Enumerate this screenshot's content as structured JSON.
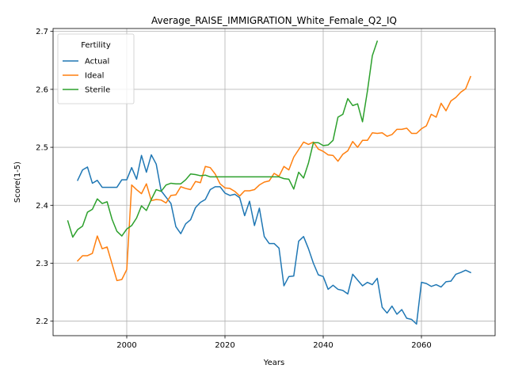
{
  "chart_data": {
    "type": "line",
    "title": "Average_RAISE_IMMIGRATION_White_Female_Q2_IQ",
    "xlabel": "Years",
    "ylabel": "Score(1-5)",
    "xlim": [
      1985,
      2075
    ],
    "ylim": [
      2.175,
      2.705
    ],
    "xticks": [
      2000,
      2020,
      2040,
      2060
    ],
    "yticks": [
      2.2,
      2.3,
      2.4,
      2.5,
      2.6,
      2.7
    ],
    "grid": true,
    "legend": {
      "title": "Fertility",
      "placement": "top-left"
    },
    "series": [
      {
        "name": "Actual",
        "color": "#1f77b4",
        "x": [
          1990,
          1991,
          1992,
          1993,
          1994,
          1995,
          1996,
          1997,
          1998,
          1999,
          2000,
          2001,
          2002,
          2003,
          2004,
          2005,
          2006,
          2007,
          2008,
          2009,
          2010,
          2011,
          2012,
          2013,
          2014,
          2015,
          2016,
          2017,
          2018,
          2019,
          2020,
          2021,
          2022,
          2023,
          2024,
          2025,
          2026,
          2027,
          2028,
          2029,
          2030,
          2031,
          2032,
          2033,
          2034,
          2035,
          2036,
          2037,
          2038,
          2039,
          2040,
          2041,
          2042,
          2043,
          2044,
          2045,
          2046,
          2047,
          2048,
          2049,
          2050,
          2051,
          2052,
          2053,
          2054,
          2055,
          2056,
          2057,
          2058,
          2059,
          2060,
          2061,
          2062,
          2063,
          2064,
          2065,
          2066,
          2067,
          2068,
          2069,
          2070
        ],
        "values": [
          2.443,
          2.461,
          2.466,
          2.438,
          2.443,
          2.431,
          2.431,
          2.431,
          2.431,
          2.444,
          2.444,
          2.465,
          2.445,
          2.486,
          2.457,
          2.487,
          2.471,
          2.425,
          2.414,
          2.403,
          2.363,
          2.351,
          2.368,
          2.375,
          2.396,
          2.405,
          2.41,
          2.427,
          2.432,
          2.432,
          2.421,
          2.417,
          2.419,
          2.413,
          2.382,
          2.407,
          2.365,
          2.395,
          2.346,
          2.334,
          2.334,
          2.326,
          2.261,
          2.277,
          2.278,
          2.338,
          2.346,
          2.325,
          2.3,
          2.28,
          2.277,
          2.255,
          2.262,
          2.255,
          2.253,
          2.247,
          2.281,
          2.271,
          2.261,
          2.267,
          2.263,
          2.274,
          2.224,
          2.214,
          2.226,
          2.212,
          2.22,
          2.205,
          2.203,
          2.195,
          2.267,
          2.265,
          2.26,
          2.263,
          2.259,
          2.268,
          2.269,
          2.281,
          2.284,
          2.288,
          2.284
        ]
      },
      {
        "name": "Ideal",
        "color": "#ff7f0e",
        "x": [
          1990,
          1991,
          1992,
          1993,
          1994,
          1995,
          1996,
          1997,
          1998,
          1999,
          2000,
          2001,
          2002,
          2003,
          2004,
          2005,
          2006,
          2007,
          2008,
          2009,
          2010,
          2011,
          2012,
          2013,
          2014,
          2015,
          2016,
          2017,
          2018,
          2019,
          2020,
          2021,
          2022,
          2023,
          2024,
          2025,
          2026,
          2027,
          2028,
          2029,
          2030,
          2031,
          2032,
          2033,
          2034,
          2035,
          2036,
          2037,
          2038,
          2039,
          2040,
          2041,
          2042,
          2043,
          2044,
          2045,
          2046,
          2047,
          2048,
          2049,
          2050,
          2051,
          2052,
          2053,
          2054,
          2055,
          2056,
          2057,
          2058,
          2059,
          2060,
          2061,
          2062,
          2063,
          2064,
          2065,
          2066,
          2067,
          2068,
          2069,
          2070
        ],
        "values": [
          2.304,
          2.313,
          2.313,
          2.317,
          2.347,
          2.325,
          2.328,
          2.299,
          2.27,
          2.272,
          2.289,
          2.435,
          2.427,
          2.42,
          2.437,
          2.408,
          2.41,
          2.409,
          2.404,
          2.417,
          2.418,
          2.432,
          2.429,
          2.427,
          2.441,
          2.439,
          2.467,
          2.465,
          2.454,
          2.437,
          2.43,
          2.429,
          2.424,
          2.416,
          2.425,
          2.425,
          2.427,
          2.435,
          2.44,
          2.442,
          2.455,
          2.45,
          2.467,
          2.461,
          2.483,
          2.496,
          2.509,
          2.505,
          2.509,
          2.497,
          2.493,
          2.487,
          2.486,
          2.476,
          2.488,
          2.494,
          2.51,
          2.5,
          2.512,
          2.512,
          2.525,
          2.524,
          2.525,
          2.519,
          2.522,
          2.531,
          2.531,
          2.533,
          2.524,
          2.524,
          2.532,
          2.537,
          2.557,
          2.552,
          2.576,
          2.563,
          2.58,
          2.586,
          2.595,
          2.601,
          2.622
        ]
      },
      {
        "name": "Sterile",
        "color": "#2ca02c",
        "x": [
          1988,
          1989,
          1990,
          1991,
          1992,
          1993,
          1994,
          1995,
          1996,
          1997,
          1998,
          1999,
          2000,
          2001,
          2002,
          2003,
          2004,
          2005,
          2006,
          2007,
          2008,
          2009,
          2010,
          2011,
          2012,
          2013,
          2014,
          2015,
          2016,
          2017,
          2018,
          2019,
          2020,
          2021,
          2022,
          2023,
          2024,
          2025,
          2026,
          2027,
          2028,
          2029,
          2030,
          2031,
          2032,
          2033,
          2034,
          2035,
          2036,
          2037,
          2038,
          2039,
          2040,
          2041,
          2042,
          2043,
          2044,
          2045,
          2046,
          2047,
          2048,
          2049,
          2050,
          2051
        ],
        "values": [
          2.373,
          2.345,
          2.358,
          2.364,
          2.388,
          2.393,
          2.411,
          2.403,
          2.406,
          2.376,
          2.355,
          2.347,
          2.359,
          2.365,
          2.378,
          2.399,
          2.391,
          2.41,
          2.427,
          2.424,
          2.435,
          2.438,
          2.437,
          2.437,
          2.444,
          2.454,
          2.453,
          2.451,
          2.452,
          2.449,
          2.449,
          2.449,
          2.449,
          2.449,
          2.449,
          2.449,
          2.449,
          2.449,
          2.449,
          2.449,
          2.449,
          2.449,
          2.449,
          2.449,
          2.446,
          2.445,
          2.428,
          2.457,
          2.447,
          2.473,
          2.508,
          2.508,
          2.503,
          2.504,
          2.512,
          2.552,
          2.557,
          2.584,
          2.572,
          2.575,
          2.544,
          2.597,
          2.658,
          2.683
        ]
      }
    ]
  }
}
